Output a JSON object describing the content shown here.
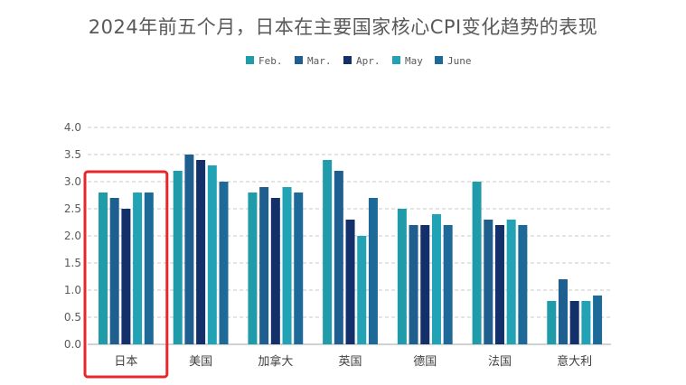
{
  "title": "2024年前五个月，日本在主要国家核心CPI变化趋势的表现",
  "chart_data": {
    "type": "bar",
    "title": "2024年前五个月，日本在主要国家核心CPI变化趋势的表现",
    "xlabel": "",
    "ylabel": "",
    "ylim": [
      0,
      4.0
    ],
    "yticks": [
      "0.0",
      "0.5",
      "1.0",
      "1.5",
      "2.0",
      "2.5",
      "3.0",
      "3.5",
      "4.0"
    ],
    "grid": true,
    "legend_position": "top-center",
    "categories": [
      "日本",
      "美国",
      "加拿大",
      "英国",
      "德国",
      "法国",
      "意大利"
    ],
    "series": [
      {
        "name": "Feb.",
        "color": "#1F9BAA",
        "values": [
          2.8,
          3.2,
          2.8,
          3.4,
          2.5,
          3.0,
          0.8
        ]
      },
      {
        "name": "Mar.",
        "color": "#1E5F8F",
        "values": [
          2.7,
          3.5,
          2.9,
          3.2,
          2.2,
          2.3,
          1.2
        ]
      },
      {
        "name": "Apr.",
        "color": "#13306A",
        "values": [
          2.5,
          3.4,
          2.7,
          2.3,
          2.2,
          2.2,
          0.8
        ]
      },
      {
        "name": "May",
        "color": "#22A3B5",
        "values": [
          2.8,
          3.3,
          2.9,
          2.0,
          2.4,
          2.3,
          0.8
        ]
      },
      {
        "name": "June",
        "color": "#1D6A99",
        "values": [
          2.8,
          3.0,
          2.8,
          2.7,
          2.2,
          2.2,
          0.9
        ]
      }
    ],
    "highlight": {
      "category": "日本",
      "color": "#E8262B"
    }
  }
}
